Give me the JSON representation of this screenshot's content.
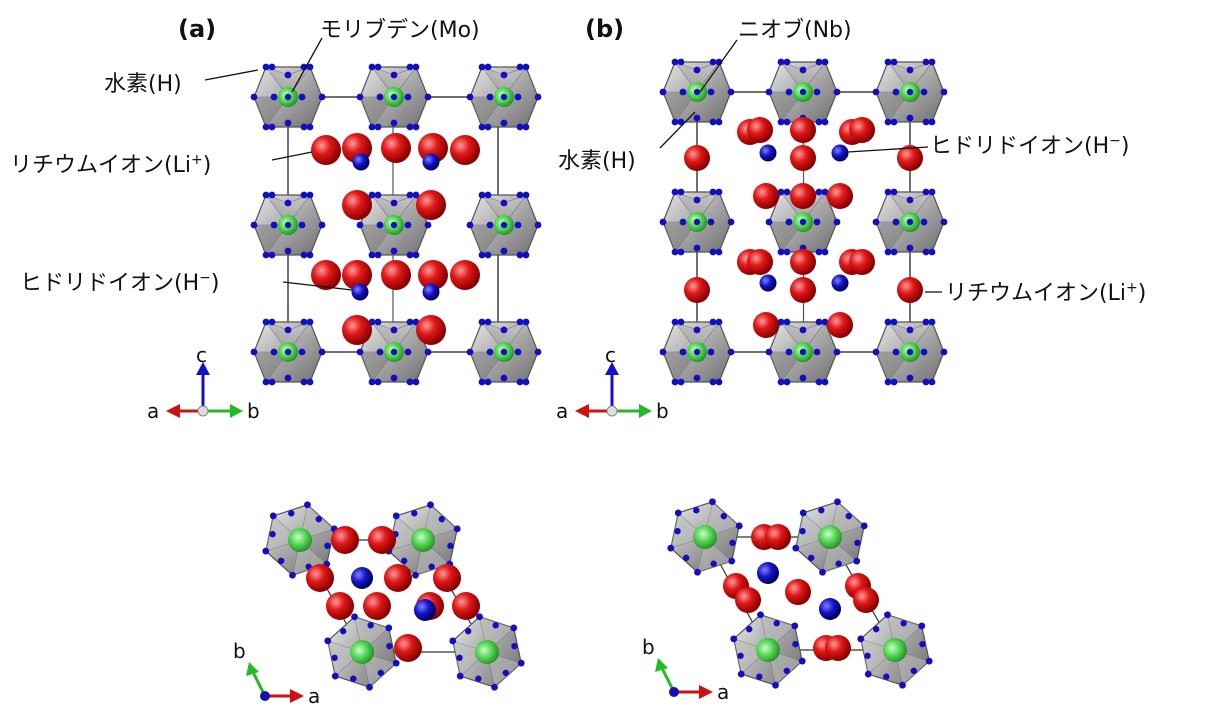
{
  "panels": {
    "a": {
      "tag": "(a)",
      "metal": "モリブデン(Mo)",
      "hydrogen": "水素(H)",
      "lithium": "リチウムイオン(Li",
      "lithium_sup": "+",
      "lithium_end": ")",
      "hydride": "ヒドリドイオン(H",
      "hydride_sup": "−",
      "hydride_end": ")"
    },
    "b": {
      "tag": "(b)",
      "metal": "ニオブ(Nb)",
      "hydrogen": "水素(H)",
      "lithium": "リチウムイオン(Li",
      "lithium_sup": "+",
      "lithium_end": ")",
      "hydride": "ヒドリドイオン(H",
      "hydride_sup": "−",
      "hydride_end": ")"
    }
  },
  "axes": {
    "side": {
      "up": "c",
      "left": "a",
      "right": "b"
    },
    "top": {
      "up": "b",
      "right": "a"
    }
  },
  "colors": {
    "metal_green": "#5fd35f",
    "hydrogen_blue": "#1010c0",
    "lithium_red": "#dd1111",
    "octahedron_gray": "#9a9a9a",
    "axis_red": "#cc1111",
    "axis_green": "#22bb22",
    "axis_blue": "#1111cc"
  }
}
